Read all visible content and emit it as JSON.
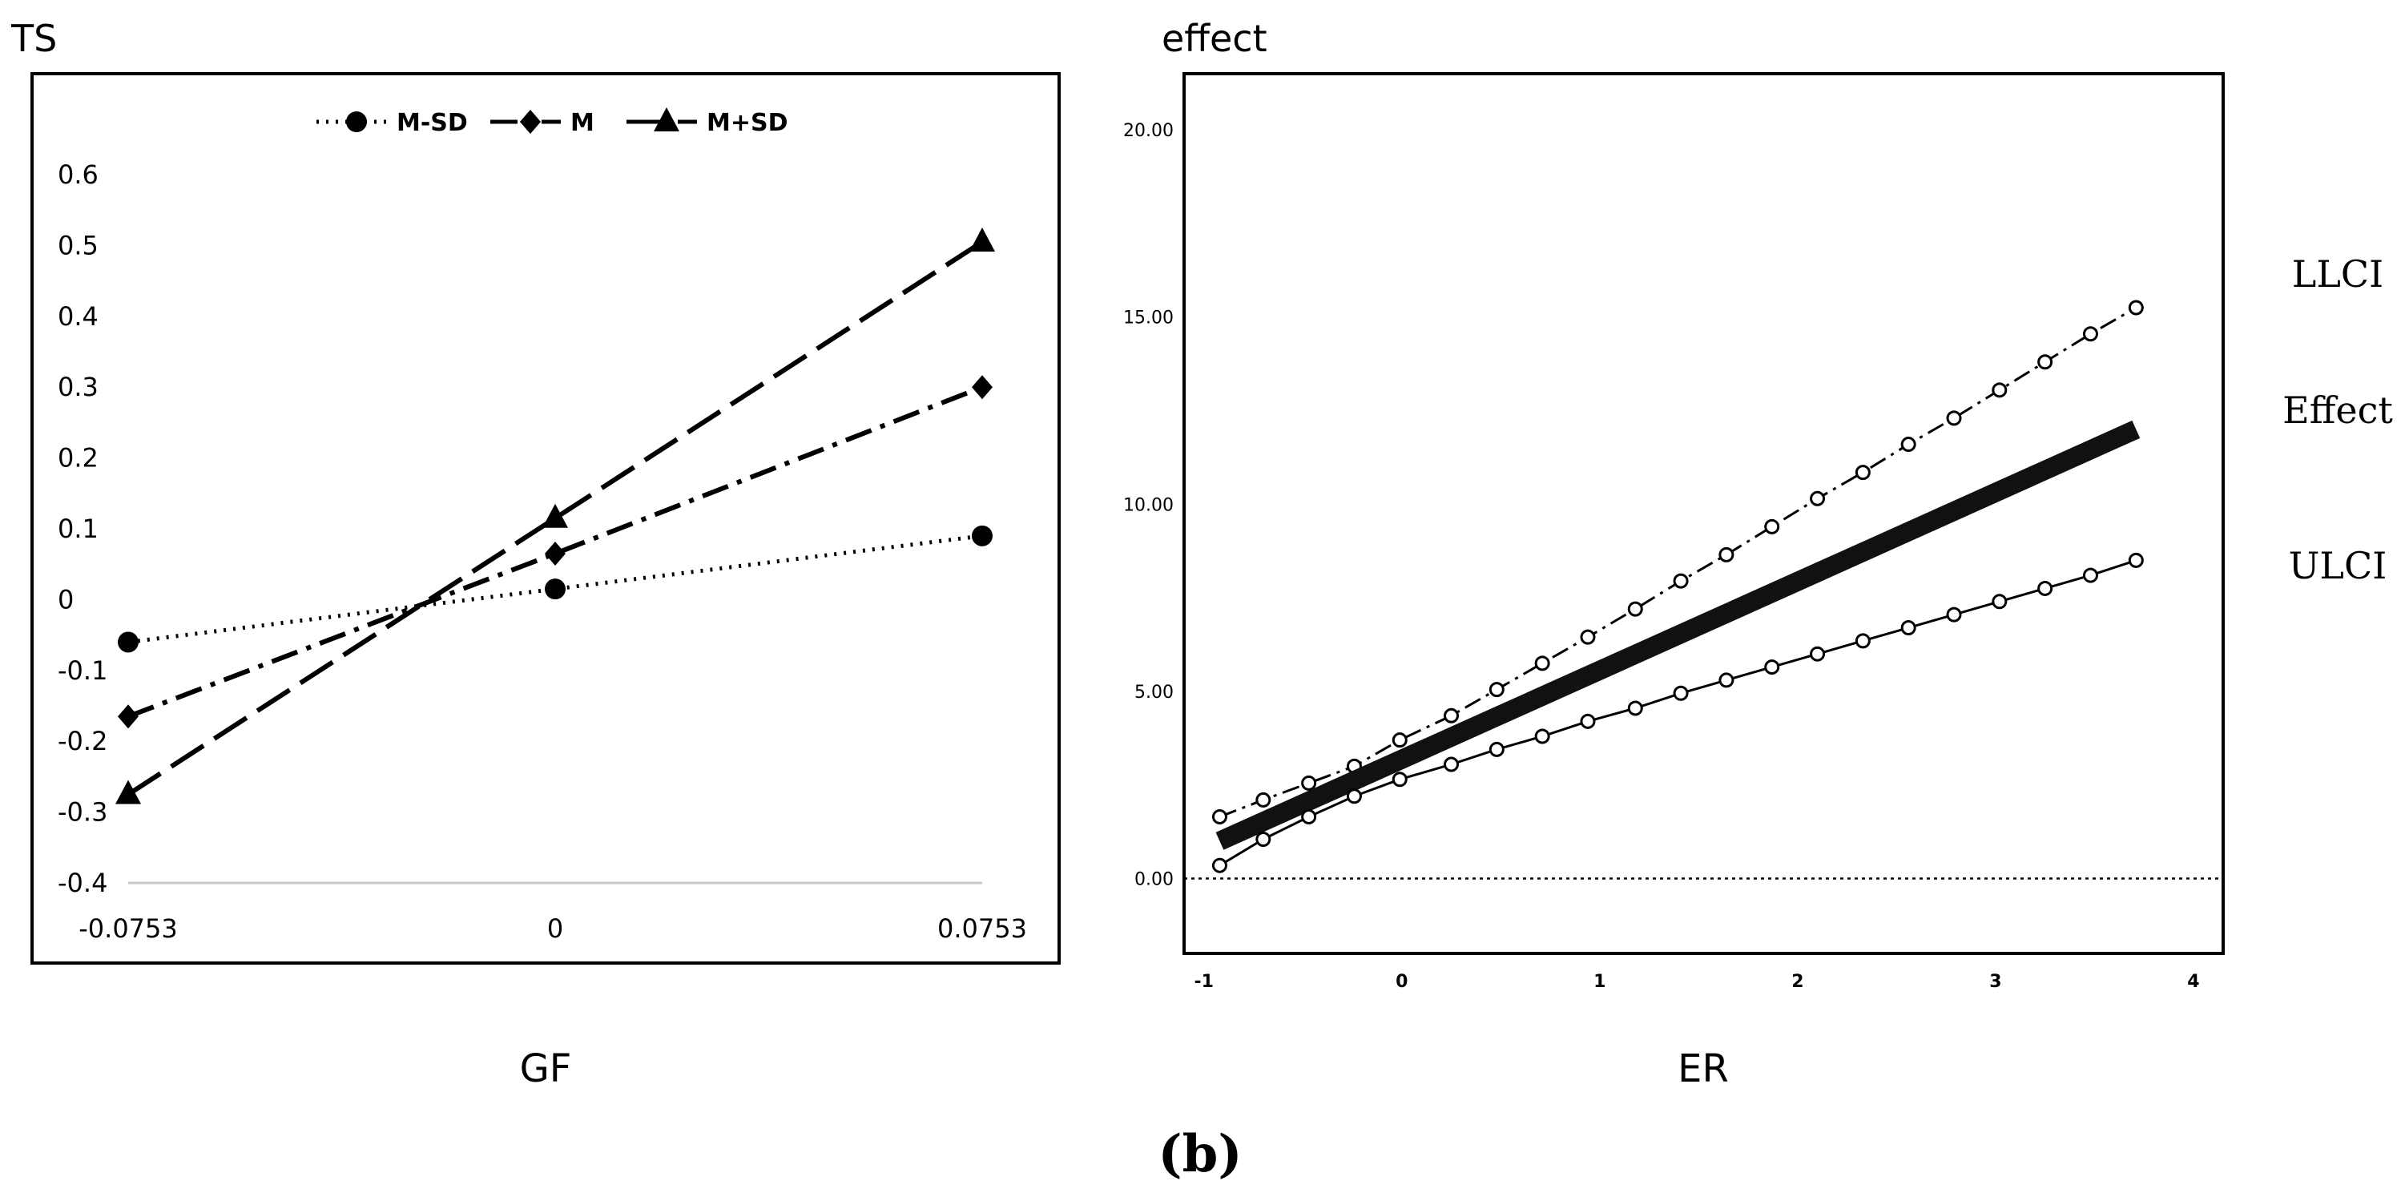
{
  "chart_data": [
    {
      "type": "line",
      "title": "",
      "ylabel": "TS",
      "xlabel": "GF",
      "x": [
        -0.0753,
        0,
        0.0753
      ],
      "xticks": [
        "-0.0753",
        "0",
        "0.0753"
      ],
      "yticks": [
        "0.6",
        "0.5",
        "0.4",
        "0.3",
        "0.2",
        "0.1",
        "0",
        "-0.1",
        "-0.2",
        "-0.3",
        "-0.4"
      ],
      "ylim": [
        -0.4,
        0.6
      ],
      "legend_position": "top-center",
      "series": [
        {
          "name": "M-SD",
          "marker": "circle",
          "dash": "dotted",
          "values": [
            -0.06,
            0.015,
            0.09
          ]
        },
        {
          "name": "M",
          "marker": "diamond",
          "dash": "dash-dot",
          "values": [
            -0.165,
            0.065,
            0.3
          ]
        },
        {
          "name": "M+SD",
          "marker": "triangle",
          "dash": "dashed",
          "values": [
            -0.275,
            0.115,
            0.505
          ]
        }
      ]
    },
    {
      "type": "line",
      "title": "",
      "ylabel": "effect",
      "xlabel": "ER",
      "xticks": [
        "-1",
        "0",
        "1",
        "2",
        "3",
        "4"
      ],
      "yticks": [
        "20.00",
        "15.00",
        "10.00",
        "5.00",
        "0.00"
      ],
      "xlim": [
        -1.1,
        4.15
      ],
      "ylim": [
        -2.0,
        21.5
      ],
      "reference_line_y": 0,
      "series": [
        {
          "name": "LLCI",
          "style": "dash-dot",
          "marker": "open-circle",
          "x": [
            -0.92,
            -0.7,
            -0.47,
            -0.24,
            -0.01,
            0.25,
            0.48,
            0.71,
            0.94,
            1.18,
            1.41,
            1.64,
            1.87,
            2.1,
            2.33,
            2.56,
            2.79,
            3.02,
            3.25,
            3.48,
            3.71
          ],
          "values": [
            1.65,
            2.1,
            2.55,
            3.0,
            3.7,
            4.35,
            5.05,
            5.75,
            6.45,
            7.2,
            7.95,
            8.65,
            9.4,
            10.15,
            10.85,
            11.6,
            12.3,
            13.05,
            13.8,
            14.55,
            15.25
          ]
        },
        {
          "name": "Effect",
          "style": "thick-solid",
          "marker": "none",
          "x": [
            -0.92,
            3.71
          ],
          "values": [
            1.0,
            12.0
          ]
        },
        {
          "name": "ULCI",
          "style": "solid",
          "marker": "open-circle",
          "x": [
            -0.92,
            -0.7,
            -0.47,
            -0.24,
            -0.01,
            0.25,
            0.48,
            0.71,
            0.94,
            1.18,
            1.41,
            1.64,
            1.87,
            2.1,
            2.33,
            2.56,
            2.79,
            3.02,
            3.25,
            3.48,
            3.71
          ],
          "values": [
            0.35,
            1.05,
            1.65,
            2.2,
            2.65,
            3.05,
            3.45,
            3.8,
            4.2,
            4.55,
            4.95,
            5.3,
            5.65,
            6.0,
            6.35,
            6.7,
            7.05,
            7.4,
            7.75,
            8.1,
            8.5
          ]
        }
      ],
      "legend": [
        "LLCI",
        "Effect",
        "ULCI"
      ]
    }
  ],
  "caption": "(b)"
}
